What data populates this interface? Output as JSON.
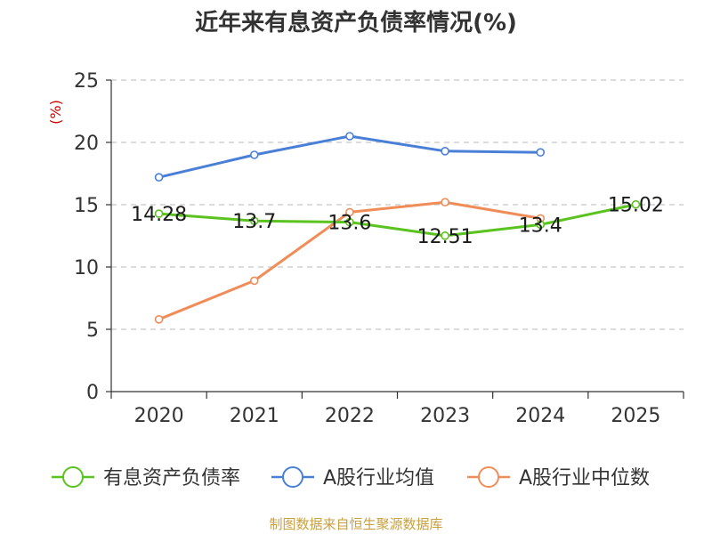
{
  "chart_data": {
    "type": "line",
    "title": "近年来有息资产负债率情况(%)",
    "ylabel": "(%)",
    "xlabel": "",
    "categories": [
      "2020",
      "2021",
      "2022",
      "2023",
      "2024",
      "2025"
    ],
    "ylim": [
      0,
      25
    ],
    "yticks": [
      0,
      5,
      10,
      15,
      20,
      25
    ],
    "grid": true,
    "legend_position": "bottom",
    "series": [
      {
        "name": "有息资产负债率",
        "color": "#5ac31f",
        "values": [
          14.28,
          13.7,
          13.6,
          12.51,
          13.4,
          15.02
        ],
        "labels": [
          "14.28",
          "13.7",
          "13.6",
          "12.51",
          "13.4",
          "15.02"
        ]
      },
      {
        "name": "A股行业均值",
        "color": "#4a7fd8",
        "values": [
          17.2,
          19.0,
          20.5,
          19.3,
          19.2,
          null
        ]
      },
      {
        "name": "A股行业中位数",
        "color": "#f08c58",
        "values": [
          5.8,
          8.9,
          14.4,
          15.2,
          13.9,
          null
        ]
      }
    ]
  },
  "source": "制图数据来自恒生聚源数据库"
}
